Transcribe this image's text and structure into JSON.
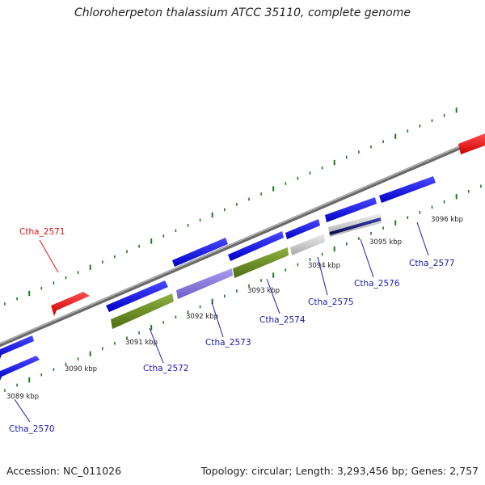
{
  "title": "Chloroherpeton thalassium ATCC 35110, complete genome",
  "accession_text": "Accession: NC_011026",
  "summary_text": "Topology: circular; Length: 3,293,456 bp; Genes: 2,757",
  "colors": {
    "backbone": "#888888",
    "cds_forward": "#1010e0",
    "rna": "#ee1111",
    "cds_green": "#6b8e23",
    "cds_purple": "#8a7ad6",
    "cds_gray": "#c4c4c4",
    "cds_navy": "#1a1a7a",
    "tick": "#1c7a1c",
    "label_blue": "#1a1ab0",
    "label_red": "#dd1111"
  },
  "kbp_ticks": [
    "3089 kbp",
    "3090 kbp",
    "3091 kbp",
    "3092 kbp",
    "3093 kbp",
    "3094 kbp",
    "3095 kbp",
    "3096 kbp"
  ],
  "gene_labels": [
    {
      "id": "Ctha_2570",
      "color": "blue"
    },
    {
      "id": "Ctha_2571",
      "color": "red"
    },
    {
      "id": "Ctha_2572",
      "color": "blue"
    },
    {
      "id": "Ctha_2573",
      "color": "blue"
    },
    {
      "id": "Ctha_2574",
      "color": "blue"
    },
    {
      "id": "Ctha_2575",
      "color": "blue"
    },
    {
      "id": "Ctha_2576",
      "color": "blue"
    },
    {
      "id": "Ctha_2577",
      "color": "blue"
    }
  ]
}
